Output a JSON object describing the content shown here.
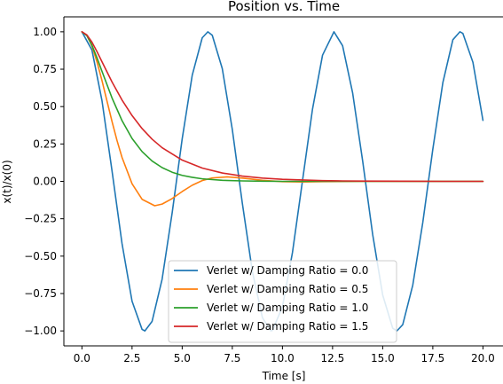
{
  "chart_data": {
    "type": "line",
    "title": "Position vs. Time",
    "xlabel": "Time [s]",
    "ylabel": "x(t)/x(0)",
    "xlim": [
      -0.9,
      21.0
    ],
    "ylim": [
      -1.1,
      1.1
    ],
    "xticks": [
      0.0,
      2.5,
      5.0,
      7.5,
      10.0,
      12.5,
      15.0,
      17.5,
      20.0
    ],
    "xtick_labels": [
      "0.0",
      "2.5",
      "5.0",
      "7.5",
      "10.0",
      "12.5",
      "15.0",
      "17.5",
      "20.0"
    ],
    "yticks": [
      1.0,
      0.75,
      0.5,
      0.25,
      0.0,
      -0.25,
      -0.5,
      -0.75,
      -1.0
    ],
    "ytick_labels": [
      "1.00",
      "0.75",
      "0.50",
      "0.25",
      "0.00",
      "−0.25",
      "−0.50",
      "−0.75",
      "−1.00"
    ],
    "grid": false,
    "legend_position": "lower-center",
    "series": [
      {
        "name": "Verlet w/ Damping Ratio = 0.0",
        "color": "#1f77b4",
        "x": [
          0.0,
          0.5,
          1.0,
          1.5,
          2.0,
          2.5,
          3.0,
          3.14,
          3.5,
          4.0,
          4.5,
          5.0,
          5.5,
          6.0,
          6.28,
          6.5,
          7.0,
          7.5,
          8.0,
          8.5,
          9.0,
          9.42,
          9.5,
          10.0,
          10.5,
          11.0,
          11.5,
          12.0,
          12.57,
          13.0,
          13.5,
          14.0,
          14.5,
          15.0,
          15.5,
          15.71,
          16.0,
          16.5,
          17.0,
          17.5,
          18.0,
          18.5,
          18.85,
          19.0,
          19.5,
          20.0
        ],
        "y": [
          1.0,
          0.878,
          0.54,
          0.071,
          -0.416,
          -0.801,
          -0.99,
          -1.0,
          -0.936,
          -0.654,
          -0.211,
          0.284,
          0.709,
          0.96,
          1.0,
          0.977,
          0.754,
          0.347,
          -0.146,
          -0.602,
          -0.911,
          -1.0,
          -0.997,
          -0.839,
          -0.476,
          0.004,
          0.483,
          0.844,
          1.0,
          0.907,
          0.592,
          0.137,
          -0.355,
          -0.76,
          -0.982,
          -1.0,
          -0.958,
          -0.694,
          -0.275,
          0.215,
          0.66,
          0.947,
          1.0,
          0.989,
          0.796,
          0.408
        ]
      },
      {
        "name": "Verlet w/ Damping Ratio = 0.5",
        "color": "#ff7f0e",
        "x": [
          0.0,
          0.25,
          0.5,
          0.75,
          1.0,
          1.25,
          1.5,
          1.75,
          2.0,
          2.5,
          3.0,
          3.63,
          4.0,
          4.5,
          5.0,
          5.5,
          6.0,
          6.5,
          7.25,
          8.0,
          9.0,
          10.0,
          11.0,
          12.0,
          14.0,
          16.0,
          18.0,
          20.0
        ],
        "y": [
          1.0,
          0.975,
          0.905,
          0.8,
          0.674,
          0.537,
          0.401,
          0.273,
          0.16,
          -0.016,
          -0.12,
          -0.163,
          -0.152,
          -0.115,
          -0.068,
          -0.026,
          0.005,
          0.023,
          0.03,
          0.022,
          0.007,
          -0.002,
          -0.004,
          -0.002,
          0.0,
          0.0,
          0.0,
          0.0
        ]
      },
      {
        "name": "Verlet w/ Damping Ratio = 1.0",
        "color": "#2ca02c",
        "x": [
          0.0,
          0.25,
          0.5,
          0.75,
          1.0,
          1.5,
          2.0,
          2.5,
          3.0,
          3.5,
          4.0,
          4.5,
          5.0,
          5.5,
          6.0,
          7.0,
          8.0,
          9.0,
          10.0,
          12.0,
          14.0,
          16.0,
          18.0,
          20.0
        ],
        "y": [
          1.0,
          0.974,
          0.91,
          0.827,
          0.736,
          0.558,
          0.406,
          0.287,
          0.199,
          0.136,
          0.092,
          0.061,
          0.04,
          0.027,
          0.017,
          0.007,
          0.003,
          0.001,
          0.0,
          0.0,
          0.0,
          0.0,
          0.0,
          0.0
        ]
      },
      {
        "name": "Verlet w/ Damping Ratio = 1.5",
        "color": "#d62728",
        "x": [
          0.0,
          0.25,
          0.5,
          0.75,
          1.0,
          1.5,
          2.0,
          2.5,
          3.0,
          3.5,
          4.0,
          5.0,
          6.0,
          7.0,
          8.0,
          9.0,
          10.0,
          11.0,
          12.0,
          13.0,
          14.0,
          16.0,
          18.0,
          20.0
        ],
        "y": [
          1.0,
          0.979,
          0.931,
          0.868,
          0.8,
          0.665,
          0.544,
          0.44,
          0.353,
          0.282,
          0.225,
          0.142,
          0.089,
          0.056,
          0.035,
          0.022,
          0.014,
          0.009,
          0.005,
          0.003,
          0.002,
          0.001,
          0.0,
          0.0
        ]
      }
    ]
  }
}
